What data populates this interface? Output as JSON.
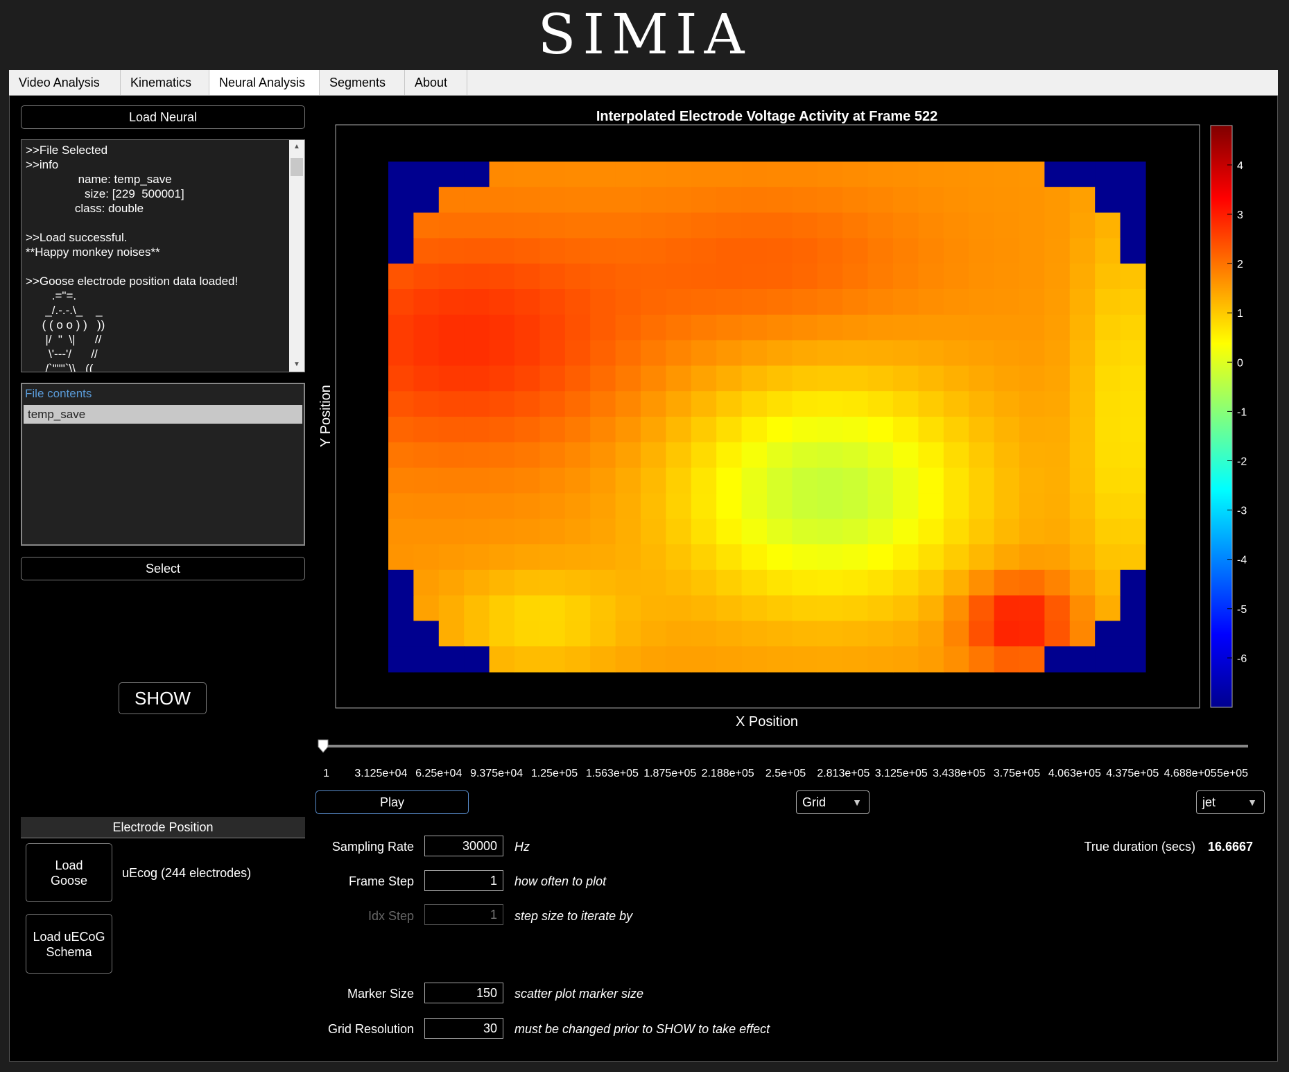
{
  "app": {
    "logo": "SIMIA"
  },
  "tabs": [
    {
      "label": "Video Analysis",
      "active": false
    },
    {
      "label": "Kinematics",
      "active": false
    },
    {
      "label": "Neural Analysis",
      "active": true
    },
    {
      "label": "Segments",
      "active": false
    },
    {
      "label": "About",
      "active": false
    }
  ],
  "left": {
    "load_neural_label": "Load Neural",
    "log_lines": [
      ">>File Selected",
      ">>info",
      "                name: temp_save",
      "                  size: [229  500001]",
      "               class: double",
      "",
      ">>Load successful.",
      "**Happy monkey noises**",
      "",
      ">>Goose electrode position data loaded!",
      "        .=\"=.",
      "      _/.-.-.\\_    _",
      "     ( ( o o ) )   ))",
      "      |/  \"  \\|      //",
      "       \\'---'/      //",
      "      /`\"\"\"`\\\\   (("
    ],
    "file_contents_title": "File contents",
    "file_items": [
      "temp_save"
    ],
    "select_label": "Select",
    "show_label": "SHOW",
    "electrode_section_title": "Electrode Position",
    "load_goose_label": [
      "Load",
      "Goose"
    ],
    "electrode_info": "uEcog (244 electrodes)",
    "load_uecog_label": [
      "Load uECoG",
      "Schema"
    ]
  },
  "plot": {
    "title": "Interpolated Electrode Voltage Activity at Frame 522",
    "xlabel": "X Position",
    "ylabel": "Y Position",
    "colormap": "jet"
  },
  "slider": {
    "value": 1,
    "min": 1,
    "max": 500000,
    "tick_labels": [
      "1",
      "3.125e+04",
      "6.25e+04",
      "9.375e+04",
      "1.25e+05",
      "1.563e+05",
      "1.875e+05",
      "2.188e+05",
      "2.5e+05",
      "2.813e+05",
      "3.125e+05",
      "3.438e+05",
      "3.75e+05",
      "4.063e+05",
      "4.375e+05",
      "4.688e+05",
      "5e+05"
    ]
  },
  "controls": {
    "play_label": "Play",
    "grid_dropdown": "Grid",
    "colormap_dropdown": "jet",
    "sampling_rate_label": "Sampling Rate",
    "sampling_rate_value": "30000",
    "sampling_rate_unit": "Hz",
    "frame_step_label": "Frame Step",
    "frame_step_value": "1",
    "frame_step_hint": "how often to plot",
    "idx_step_label": "Idx Step",
    "idx_step_value": "1",
    "idx_step_hint": "step size to iterate by",
    "true_duration_label": "True duration (secs)",
    "true_duration_value": "16.6667",
    "marker_size_label": "Marker Size",
    "marker_size_value": "150",
    "marker_size_hint": "scatter plot marker size",
    "grid_res_label": "Grid Resolution",
    "grid_res_value": "30",
    "grid_res_hint": "must be changed prior to SHOW to take effect"
  },
  "chart_data": {
    "type": "heatmap",
    "title": "Interpolated Electrode Voltage Activity at Frame 522",
    "xlabel": "X Position",
    "ylabel": "Y Position",
    "colormap": "jet",
    "clim": [
      -7,
      4.8
    ],
    "colorbar_ticks": [
      4,
      3,
      2,
      1,
      0,
      -1,
      -2,
      -3,
      -4,
      -5,
      -6
    ],
    "grid_resolution": 30,
    "masked_value": -7,
    "corner_mask_value": -7
  }
}
